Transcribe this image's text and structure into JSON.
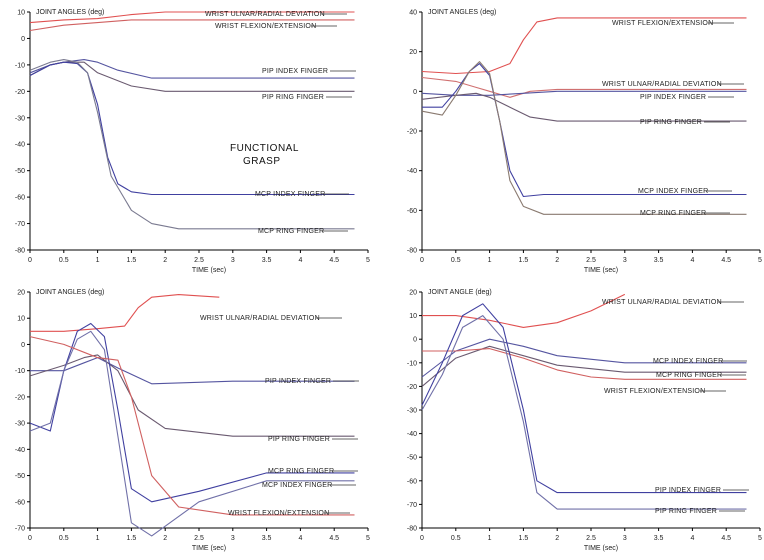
{
  "annotation": {
    "line1": "FUNCTIONAL",
    "line2": "GRASP"
  },
  "chart_data": [
    {
      "type": "line",
      "title": "JOINT ANGLES (deg)",
      "xlabel": "TIME (sec)",
      "xlim": [
        0,
        5
      ],
      "ylim": [
        -80,
        10
      ],
      "x_ticks": [
        "0",
        "0.5",
        "1",
        "1.5",
        "2",
        "2.5",
        "3",
        "3.5",
        "4",
        "4.5",
        "5"
      ],
      "y_ticks": [
        "10",
        "0",
        "-10",
        "-20",
        "-30",
        "-40",
        "-50",
        "-60",
        "-70",
        "-80"
      ],
      "series": [
        {
          "name": "WRIST ULNAR/RADIAL DEVIATION",
          "color": "#e05050",
          "x": [
            0,
            0.5,
            1,
            1.5,
            2,
            3,
            4,
            4.8
          ],
          "y": [
            6,
            7,
            7.5,
            9,
            10,
            10,
            10,
            10
          ]
        },
        {
          "name": "WRIST FLEXION/EXTENSION",
          "color": "#d06060",
          "x": [
            0,
            0.5,
            1,
            1.5,
            2,
            3,
            4,
            4.8
          ],
          "y": [
            3,
            5,
            6,
            7,
            7,
            7,
            7,
            7
          ]
        },
        {
          "name": "PIP INDEX FINGER",
          "color": "#5555a0",
          "x": [
            0,
            0.3,
            0.5,
            0.8,
            1,
            1.3,
            1.8,
            3,
            4.8
          ],
          "y": [
            -13,
            -10,
            -9,
            -8,
            -9,
            -12,
            -15,
            -15,
            -15
          ]
        },
        {
          "name": "PIP RING FINGER",
          "color": "#6a5a70",
          "x": [
            0,
            0.3,
            0.5,
            0.8,
            1,
            1.5,
            2,
            3,
            4.8
          ],
          "y": [
            -14,
            -10,
            -9,
            -9,
            -13,
            -18,
            -20,
            -20,
            -20
          ]
        },
        {
          "name": "MCP INDEX FINGER",
          "color": "#4040a0",
          "x": [
            0,
            0.3,
            0.5,
            0.7,
            0.85,
            1,
            1.15,
            1.3,
            1.5,
            1.8,
            3,
            4.8
          ],
          "y": [
            -14,
            -10,
            -9,
            -9.5,
            -13,
            -25,
            -45,
            -55,
            -58,
            -59,
            -59,
            -59
          ]
        },
        {
          "name": "MCP RING FINGER",
          "color": "#7a7a90",
          "x": [
            0,
            0.3,
            0.5,
            0.7,
            0.85,
            1,
            1.2,
            1.5,
            1.8,
            2.2,
            3,
            4.8
          ],
          "y": [
            -12,
            -9,
            -8,
            -9,
            -13,
            -28,
            -52,
            -65,
            -70,
            -72,
            -72,
            -72
          ]
        }
      ],
      "inline_labels": [
        "WRIST ULNAR/RADIAL DEVIATION",
        "WRIST FLEXION/EXTENSION",
        "PIP INDEX FINGER",
        "PIP RING FINGER",
        "MCP INDEX FINGER",
        "MCP RING FINGER"
      ]
    },
    {
      "type": "line",
      "title": "JOINT ANGLES (deg)",
      "xlabel": "TIME (sec)",
      "xlim": [
        0,
        5
      ],
      "ylim": [
        -80,
        40
      ],
      "x_ticks": [
        "0",
        "0.5",
        "1",
        "1.5",
        "2",
        "2.5",
        "3",
        "3.5",
        "4",
        "4.5",
        "5"
      ],
      "y_ticks": [
        "40",
        "20",
        "0",
        "-20",
        "-40",
        "-60",
        "-80"
      ],
      "series": [
        {
          "name": "WRIST FLEXION/EXTENSION",
          "color": "#e05050",
          "x": [
            0,
            0.5,
            1,
            1.3,
            1.5,
            1.7,
            2,
            3,
            4.8
          ],
          "y": [
            10,
            9,
            10,
            14,
            26,
            35,
            37,
            37,
            37
          ]
        },
        {
          "name": "WRIST ULNAR/RADIAL DEVIATION",
          "color": "#d07070",
          "x": [
            0,
            0.5,
            0.8,
            1,
            1.3,
            1.6,
            2,
            3,
            4.8
          ],
          "y": [
            7,
            5,
            2,
            0,
            -3,
            0,
            1,
            1,
            1
          ]
        },
        {
          "name": "PIP INDEX FINGER",
          "color": "#5555a0",
          "x": [
            0,
            0.5,
            1,
            1.5,
            2,
            3,
            4.8
          ],
          "y": [
            -1,
            -2,
            -2,
            -1,
            0,
            0,
            0
          ]
        },
        {
          "name": "PIP RING FINGER",
          "color": "#6a5a70",
          "x": [
            0,
            0.5,
            0.8,
            1,
            1.3,
            1.6,
            2,
            3,
            4.8
          ],
          "y": [
            -4,
            -2,
            -1,
            -3,
            -8,
            -13,
            -15,
            -15,
            -15
          ]
        },
        {
          "name": "MCP INDEX FINGER",
          "color": "#4040a0",
          "x": [
            0,
            0.3,
            0.5,
            0.7,
            0.85,
            1,
            1.15,
            1.3,
            1.5,
            1.8,
            3,
            4.8
          ],
          "y": [
            -8,
            -8,
            0,
            10,
            14,
            8,
            -15,
            -40,
            -53,
            -52,
            -52,
            -52
          ]
        },
        {
          "name": "MCP RING FINGER",
          "color": "#8a7a70",
          "x": [
            0,
            0.3,
            0.5,
            0.7,
            0.85,
            1,
            1.15,
            1.3,
            1.5,
            1.8,
            3,
            4.8
          ],
          "y": [
            -10,
            -12,
            -2,
            10,
            15,
            9,
            -15,
            -45,
            -58,
            -62,
            -62,
            -62
          ]
        }
      ],
      "inline_labels": [
        "WRIST FLEXION/EXTENSION",
        "WRIST ULNAR/RADIAL DEVIATION",
        "PIP INDEX FINGER",
        "PIP RING FINGER",
        "MCP INDEX FINGER",
        "MCP RING FINGER"
      ]
    },
    {
      "type": "line",
      "title": "JOINT ANGLES (deg)",
      "xlabel": "TIME (sec)",
      "xlim": [
        0,
        5
      ],
      "ylim": [
        -70,
        20
      ],
      "x_ticks": [
        "0",
        "0.5",
        "1",
        "1.5",
        "2",
        "2.5",
        "3",
        "3.5",
        "4",
        "4.5",
        "5"
      ],
      "y_ticks": [
        "20",
        "10",
        "0",
        "-10",
        "-20",
        "-30",
        "-40",
        "-50",
        "-60",
        "-70"
      ],
      "series": [
        {
          "name": "WRIST ULNAR/RADIAL DEVIATION",
          "color": "#e05050",
          "x": [
            0,
            0.5,
            1,
            1.4,
            1.6,
            1.8,
            2.2,
            2.8
          ],
          "y": [
            5,
            5,
            6,
            7,
            14,
            18,
            19,
            18
          ]
        },
        {
          "name": "PIP INDEX FINGER",
          "color": "#5555a0",
          "x": [
            0,
            0.5,
            0.8,
            1,
            1.3,
            1.8,
            3,
            4.8
          ],
          "y": [
            -10,
            -10,
            -7,
            -5,
            -9,
            -15,
            -14,
            -14
          ]
        },
        {
          "name": "PIP RING FINGER",
          "color": "#6a5a70",
          "x": [
            0,
            0.5,
            0.8,
            1,
            1.3,
            1.6,
            2,
            3,
            4.8
          ],
          "y": [
            -12,
            -8,
            -5,
            -4,
            -10,
            -25,
            -32,
            -35,
            -35
          ]
        },
        {
          "name": "MCP RING FINGER",
          "color": "#4040a0",
          "x": [
            0,
            0.3,
            0.5,
            0.7,
            0.9,
            1.1,
            1.3,
            1.5,
            1.8,
            2.5,
            3.5,
            4.8
          ],
          "y": [
            -30,
            -33,
            -10,
            5,
            8,
            3,
            -25,
            -55,
            -60,
            -56,
            -49,
            -49
          ]
        },
        {
          "name": "MCP INDEX FINGER",
          "color": "#7070a8",
          "x": [
            0,
            0.3,
            0.5,
            0.7,
            0.9,
            1.1,
            1.3,
            1.5,
            1.8,
            2.5,
            3.5,
            4.8
          ],
          "y": [
            -33,
            -30,
            -10,
            2,
            5,
            -2,
            -35,
            -68,
            -73,
            -60,
            -52,
            -52
          ]
        },
        {
          "name": "WRIST FLEXION/EXTENSION",
          "color": "#d06060",
          "x": [
            0,
            0.5,
            0.8,
            1,
            1.3,
            1.5,
            1.8,
            2.2,
            3,
            4.8
          ],
          "y": [
            3,
            0,
            -3,
            -5,
            -6,
            -20,
            -50,
            -62,
            -65,
            -65
          ]
        }
      ],
      "inline_labels": [
        "WRIST ULNAR/RADIAL DEVIATION",
        "PIP INDEX FINGER",
        "PIP RING FINGER",
        "MCP RING FINGER",
        "MCP INDEX FINGER",
        "WRIST FLEXION/EXTENSION"
      ]
    },
    {
      "type": "line",
      "title": "JOINT ANGLE (deg)",
      "xlabel": "TIME (sec)",
      "xlim": [
        0,
        5
      ],
      "ylim": [
        -80,
        20
      ],
      "x_ticks": [
        "0",
        "0.5",
        "1",
        "1.5",
        "2",
        "2.5",
        "3",
        "3.5",
        "4",
        "4.5",
        "5"
      ],
      "y_ticks": [
        "20",
        "10",
        "0",
        "-10",
        "-20",
        "-30",
        "-40",
        "-50",
        "-60",
        "-70",
        "-80"
      ],
      "series": [
        {
          "name": "WRIST ULNAR/RADIAL DEVIATION",
          "color": "#e05050",
          "x": [
            0,
            0.5,
            1,
            1.5,
            2,
            2.5,
            3
          ],
          "y": [
            10,
            10,
            8,
            5,
            7,
            12,
            19
          ]
        },
        {
          "name": "MCP INDEX FINGER",
          "color": "#5555a0",
          "x": [
            0,
            0.5,
            1,
            1.5,
            2,
            3,
            4.8
          ],
          "y": [
            -16,
            -5,
            0,
            -3,
            -7,
            -10,
            -10
          ]
        },
        {
          "name": "MCP RING FINGER",
          "color": "#6a5a70",
          "x": [
            0,
            0.5,
            1,
            1.5,
            2,
            3,
            4.8
          ],
          "y": [
            -20,
            -8,
            -3,
            -7,
            -11,
            -14,
            -14
          ]
        },
        {
          "name": "WRIST FLEXION/EXTENSION",
          "color": "#d06060",
          "x": [
            0,
            0.5,
            1,
            1.5,
            2,
            2.5,
            3,
            4.8
          ],
          "y": [
            -5,
            -5,
            -4,
            -8,
            -13,
            -16,
            -17,
            -17
          ]
        },
        {
          "name": "PIP INDEX FINGER",
          "color": "#4040a0",
          "x": [
            0,
            0.3,
            0.6,
            0.9,
            1.2,
            1.5,
            1.7,
            2,
            3,
            4.8
          ],
          "y": [
            -28,
            -10,
            10,
            15,
            5,
            -30,
            -60,
            -65,
            -65,
            -65
          ]
        },
        {
          "name": "PIP RING FINGER",
          "color": "#7070a8",
          "x": [
            0,
            0.3,
            0.6,
            0.9,
            1.2,
            1.5,
            1.7,
            2,
            3,
            4.8
          ],
          "y": [
            -30,
            -15,
            5,
            10,
            0,
            -35,
            -65,
            -72,
            -72,
            -72
          ]
        }
      ],
      "inline_labels": [
        "WRIST ULNAR/RADIAL DEVIATION",
        "MCP INDEX FINGER",
        "MCP RING FINGER",
        "WRIST FLEXION/EXTENSION",
        "PIP INDEX FINGER",
        "PIP RING FINGER"
      ]
    }
  ]
}
